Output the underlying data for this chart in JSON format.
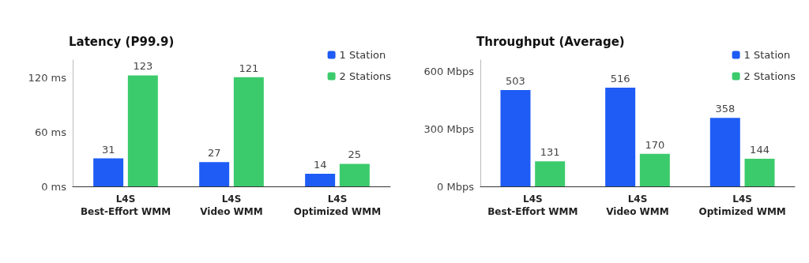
{
  "chart_data": [
    {
      "type": "bar",
      "title": "Latency (P99.9)",
      "categories": [
        "L4S\nBest-Effort WMM",
        "L4S\nVideo WMM",
        "L4S\nOptimized WMM"
      ],
      "series": [
        {
          "name": "1 Station",
          "color": "#1f5cf5",
          "values": [
            31,
            27,
            14
          ]
        },
        {
          "name": "2 Stations",
          "color": "#3ccb6c",
          "values": [
            123,
            121,
            25
          ]
        }
      ],
      "ylim": [
        0,
        140
      ],
      "yticks": [
        {
          "value": 0,
          "label": "0 ms"
        },
        {
          "value": 60,
          "label": "60 ms"
        },
        {
          "value": 120,
          "label": "120 ms"
        }
      ],
      "data_labels": true,
      "grid": false,
      "legend": "top right"
    },
    {
      "type": "bar",
      "title": "Throughput (Average)",
      "categories": [
        "L4S\nBest-Effort WMM",
        "L4S\nVideo WMM",
        "L4S\nOptimized WMM"
      ],
      "series": [
        {
          "name": "1 Station",
          "color": "#1f5cf5",
          "values": [
            503,
            516,
            358
          ]
        },
        {
          "name": "2 Stations",
          "color": "#3ccb6c",
          "values": [
            131,
            170,
            144
          ]
        }
      ],
      "ylim": [
        0,
        660
      ],
      "yticks": [
        {
          "value": 0,
          "label": "0 Mbps"
        },
        {
          "value": 300,
          "label": "300 Mbps"
        },
        {
          "value": 600,
          "label": "600 Mbps"
        }
      ],
      "data_labels": true,
      "grid": false,
      "legend": "top right"
    }
  ]
}
